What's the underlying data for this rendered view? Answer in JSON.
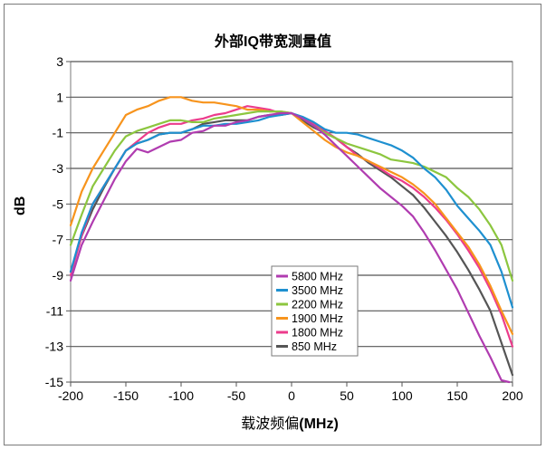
{
  "chart_data": {
    "type": "line",
    "title": "外部IQ带宽测量值",
    "ylabel": "dB",
    "xlabel_prefix": "载波频偏",
    "xlabel_unit": "(MHz)",
    "xlim": [
      -200,
      200
    ],
    "ylim": [
      -15,
      3
    ],
    "xticks": [
      -200,
      -150,
      -100,
      -50,
      0,
      50,
      100,
      150,
      200
    ],
    "yticks": [
      3,
      1,
      -1,
      -3,
      -5,
      -7,
      -9,
      -11,
      -13,
      -15
    ],
    "grid": "horizontal",
    "legend_position": "bottom-center",
    "series": [
      {
        "name": "5800 MHz",
        "color": "#b03cb0",
        "x": [
          -200,
          -190,
          -180,
          -170,
          -160,
          -150,
          -140,
          -130,
          -120,
          -110,
          -100,
          -90,
          -80,
          -70,
          -60,
          -50,
          -40,
          -30,
          -20,
          -10,
          0,
          10,
          20,
          30,
          40,
          50,
          60,
          70,
          80,
          90,
          100,
          110,
          120,
          130,
          140,
          150,
          160,
          170,
          180,
          190,
          197
        ],
        "y": [
          -9.3,
          -7.3,
          -6,
          -4.8,
          -3.6,
          -2.6,
          -1.9,
          -2.1,
          -1.8,
          -1.5,
          -1.4,
          -1.0,
          -0.9,
          -0.6,
          -0.6,
          -0.4,
          -0.3,
          -0.1,
          0.0,
          0.1,
          0.1,
          -0.2,
          -0.6,
          -1.1,
          -1.7,
          -2.3,
          -2.9,
          -3.5,
          -4.1,
          -4.6,
          -5.1,
          -5.7,
          -6.6,
          -7.6,
          -8.7,
          -9.8,
          -11.1,
          -12.4,
          -13.6,
          -14.9,
          -15
        ]
      },
      {
        "name": "3500 MHz",
        "color": "#1e90d0",
        "x": [
          -200,
          -190,
          -180,
          -170,
          -160,
          -150,
          -140,
          -130,
          -120,
          -110,
          -100,
          -90,
          -80,
          -70,
          -60,
          -50,
          -40,
          -30,
          -20,
          -10,
          0,
          10,
          20,
          30,
          40,
          50,
          60,
          70,
          80,
          90,
          100,
          110,
          120,
          130,
          140,
          150,
          160,
          170,
          180,
          190,
          200
        ],
        "y": [
          -8.8,
          -6.6,
          -5.0,
          -4.0,
          -3.0,
          -2.0,
          -1.6,
          -1.4,
          -1.1,
          -1.0,
          -1.0,
          -0.8,
          -0.6,
          -0.6,
          -0.5,
          -0.5,
          -0.4,
          -0.3,
          -0.1,
          0.0,
          0.1,
          -0.1,
          -0.4,
          -0.8,
          -1.0,
          -1.0,
          -1.1,
          -1.3,
          -1.5,
          -1.7,
          -2.0,
          -2.4,
          -3.0,
          -3.5,
          -4.2,
          -5.1,
          -5.8,
          -6.5,
          -7.3,
          -8.8,
          -10.8
        ]
      },
      {
        "name": "2200 MHz",
        "color": "#8cc63f",
        "x": [
          -200,
          -190,
          -180,
          -170,
          -160,
          -150,
          -140,
          -130,
          -120,
          -110,
          -100,
          -90,
          -80,
          -70,
          -60,
          -50,
          -40,
          -30,
          -20,
          -10,
          0,
          10,
          20,
          30,
          40,
          50,
          60,
          70,
          80,
          90,
          100,
          110,
          120,
          130,
          140,
          150,
          160,
          170,
          180,
          190,
          200
        ],
        "y": [
          -7.3,
          -5.6,
          -4.0,
          -3.0,
          -2.0,
          -1.2,
          -0.9,
          -0.7,
          -0.5,
          -0.3,
          -0.3,
          -0.4,
          -0.4,
          -0.2,
          -0.1,
          0.0,
          0.1,
          0.2,
          0.2,
          0.2,
          0.1,
          -0.2,
          -0.6,
          -1.0,
          -1.3,
          -1.6,
          -1.8,
          -2.0,
          -2.2,
          -2.5,
          -2.6,
          -2.7,
          -2.9,
          -3.2,
          -3.5,
          -4.1,
          -4.6,
          -5.3,
          -6.2,
          -7.3,
          -9.3
        ]
      },
      {
        "name": "1900 MHz",
        "color": "#f7941d",
        "x": [
          -200,
          -190,
          -180,
          -170,
          -160,
          -150,
          -140,
          -130,
          -120,
          -110,
          -100,
          -90,
          -80,
          -70,
          -60,
          -50,
          -40,
          -30,
          -20,
          -10,
          0,
          10,
          20,
          30,
          40,
          50,
          60,
          70,
          80,
          90,
          100,
          110,
          120,
          130,
          140,
          150,
          160,
          170,
          180,
          190,
          200
        ],
        "y": [
          -6.2,
          -4.3,
          -3.0,
          -2.0,
          -1.0,
          0.0,
          0.3,
          0.5,
          0.8,
          1.0,
          1.0,
          0.8,
          0.7,
          0.7,
          0.6,
          0.5,
          0.3,
          0.3,
          0.2,
          0.2,
          0.1,
          -0.4,
          -0.9,
          -1.4,
          -1.8,
          -2.1,
          -2.3,
          -2.6,
          -2.9,
          -3.2,
          -3.5,
          -3.9,
          -4.4,
          -5.0,
          -5.8,
          -6.6,
          -7.4,
          -8.4,
          -9.6,
          -11.0,
          -12.3
        ]
      },
      {
        "name": "1800 MHz",
        "color": "#ec3c8c",
        "x": [
          -200,
          -190,
          -180,
          -170,
          -160,
          -150,
          -140,
          -130,
          -120,
          -110,
          -100,
          -90,
          -80,
          -70,
          -60,
          -50,
          -40,
          -30,
          -20,
          -10,
          0,
          10,
          20,
          30,
          40,
          50,
          60,
          70,
          80,
          90,
          100,
          110,
          120,
          130,
          140,
          150,
          160,
          170,
          180,
          190,
          200
        ],
        "y": [
          -9.0,
          -6.8,
          -5.0,
          -4.0,
          -3.0,
          -2.0,
          -1.5,
          -1.0,
          -0.7,
          -0.5,
          -0.5,
          -0.3,
          -0.2,
          0.0,
          0.1,
          0.3,
          0.5,
          0.4,
          0.3,
          0.1,
          0.1,
          -0.2,
          -0.5,
          -0.9,
          -1.3,
          -1.8,
          -2.3,
          -2.6,
          -3.0,
          -3.4,
          -3.7,
          -4.1,
          -4.6,
          -5.2,
          -5.9,
          -6.7,
          -7.6,
          -8.6,
          -9.8,
          -11.2,
          -13.0
        ]
      },
      {
        "name": "850 MHz",
        "color": "#555555",
        "x": [
          -200,
          -190,
          -180,
          -170,
          -160,
          -150,
          -140,
          -130,
          -120,
          -110,
          -100,
          -90,
          -80,
          -70,
          -60,
          -50,
          -40,
          -30,
          -20,
          -10,
          0,
          10,
          20,
          30,
          40,
          50,
          60,
          70,
          80,
          90,
          100,
          110,
          120,
          130,
          140,
          150,
          160,
          170,
          180,
          190,
          200
        ],
        "y": [
          -8.8,
          -6.8,
          -5.3,
          -4.1,
          -3.0,
          -2.0,
          -1.6,
          -1.4,
          -1.1,
          -1.0,
          -1.0,
          -0.8,
          -0.5,
          -0.4,
          -0.3,
          -0.3,
          -0.3,
          -0.1,
          0.0,
          0.0,
          0.1,
          -0.3,
          -0.7,
          -1.0,
          -1.3,
          -1.8,
          -2.2,
          -2.7,
          -3.1,
          -3.5,
          -4.0,
          -4.5,
          -5.2,
          -6.0,
          -6.8,
          -7.7,
          -8.7,
          -9.8,
          -11.0,
          -12.8,
          -14.6
        ]
      }
    ]
  }
}
